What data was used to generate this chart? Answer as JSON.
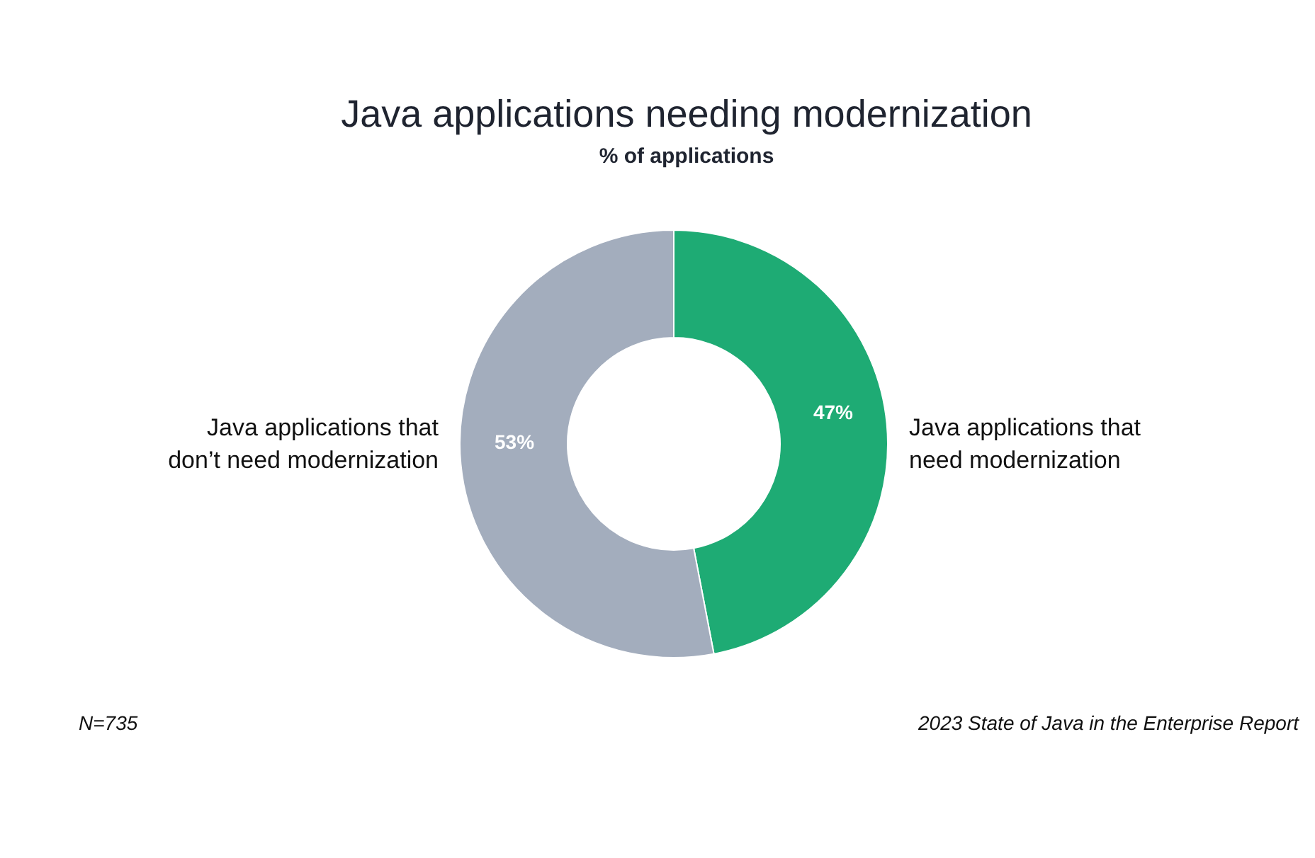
{
  "chart_data": {
    "type": "donut",
    "title": "Java applications needing modernization",
    "subtitle": "% of applications",
    "categories": [
      "Java applications that need modernization",
      "Java applications that don’t need modernization"
    ],
    "values": [
      47,
      53
    ],
    "colors": [
      "#1eab74",
      "#a3adbd"
    ],
    "value_labels": [
      "47%",
      "53%"
    ],
    "annotations": [
      "N=735",
      "2023 State of Java in the Enterprise Report"
    ]
  }
}
